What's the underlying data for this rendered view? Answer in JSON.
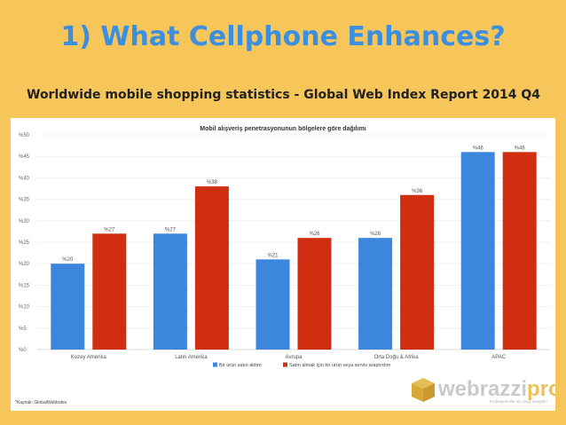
{
  "slide": {
    "title": "1) What Cellphone Enhances?",
    "subtitle": "Worldwide mobile shopping statistics - Global Web Index Report 2014 Q4"
  },
  "chart_data": {
    "type": "bar",
    "title": "Mobil alışveriş penetrasyonunun bölgelere göre dağılımı",
    "categories": [
      "Kuzey Amerika",
      "Latin Amerika",
      "Avrupa",
      "Orta Doğu & Afrika",
      "APAC"
    ],
    "series": [
      {
        "name": "Bir ürün satın aldım",
        "color": "#3c86de",
        "values": [
          20,
          27,
          21,
          26,
          46
        ],
        "labels": [
          "%20",
          "%27",
          "%21",
          "%26",
          "%46"
        ]
      },
      {
        "name": "Satın almak için bir ürün veya servis araştırdım",
        "color": "#cf2e10",
        "values": [
          27,
          38,
          26,
          36,
          46
        ],
        "labels": [
          "%27",
          "%38",
          "%26",
          "%36",
          "%46"
        ]
      }
    ],
    "ylim": [
      0,
      50
    ],
    "yticks": [
      0,
      5,
      10,
      15,
      20,
      25,
      30,
      35,
      40,
      45,
      50
    ],
    "ytick_labels": [
      "%0",
      "%5",
      "%10",
      "%15",
      "%20",
      "%25",
      "%30",
      "%35",
      "%40",
      "%45",
      "%50"
    ],
    "grid": true,
    "legend": "bottom",
    "source": "*Kaynak: GlobalWebIndex"
  },
  "watermark": {
    "text": "webrazzi",
    "accent_text": "pro",
    "tagline": "Profesyoneller için blog medyası"
  }
}
